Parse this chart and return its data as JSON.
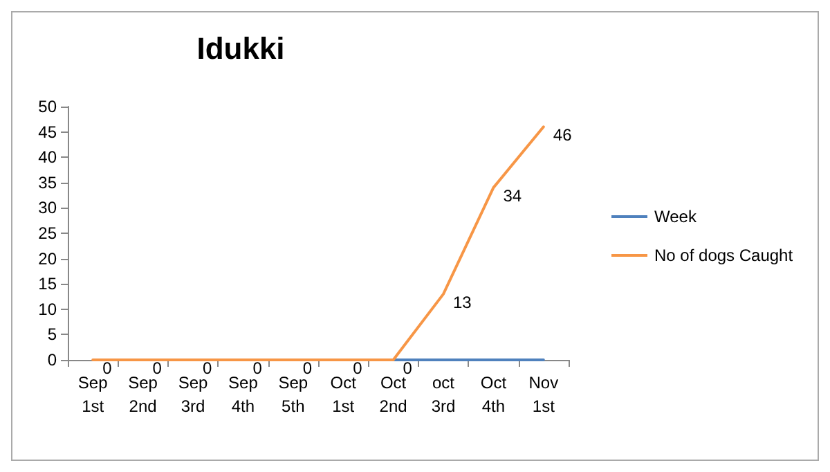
{
  "chart_data": {
    "type": "line",
    "title": "Idukki",
    "categories": [
      "Sep 1st",
      "Sep 2nd",
      "Sep 3rd",
      "Sep 4th",
      "Sep 5th",
      "Oct 1st",
      "Oct 2nd",
      "oct 3rd",
      "Oct 4th",
      "Nov 1st"
    ],
    "series": [
      {
        "name": "Week",
        "color": "#4f81bd",
        "values": [
          null,
          null,
          null,
          null,
          null,
          null,
          0,
          0,
          0,
          0
        ]
      },
      {
        "name": "No of dogs Caught",
        "color": "#f79646",
        "values": [
          0,
          0,
          0,
          0,
          0,
          0,
          0,
          13,
          34,
          46
        ],
        "value_labels": [
          "0",
          "0",
          "0",
          "0",
          "0",
          "0",
          "0",
          "13",
          "34",
          "46"
        ]
      }
    ],
    "ylim": [
      0,
      50
    ],
    "yticks": [
      0,
      5,
      10,
      15,
      20,
      25,
      30,
      35,
      40,
      45,
      50
    ],
    "grid": false,
    "legend": "right",
    "marker": "none",
    "line_style": "solid"
  }
}
